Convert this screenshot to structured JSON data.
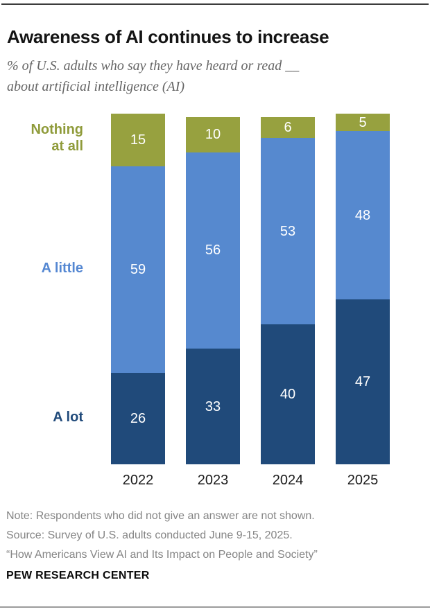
{
  "header": {
    "title": "Awareness of AI continues to increase",
    "subtitle_line1": "% of U.S. adults who say they have heard or read __",
    "subtitle_line2": "about artificial intelligence (AI)"
  },
  "chart_data": {
    "type": "bar",
    "stacked": true,
    "orientation": "vertical",
    "categories": [
      "2022",
      "2023",
      "2024",
      "2025"
    ],
    "series": [
      {
        "name": "A lot",
        "color": "#204a7a",
        "values": [
          26,
          33,
          40,
          47
        ]
      },
      {
        "name": "A little",
        "color": "#5689cf",
        "values": [
          59,
          56,
          53,
          48
        ]
      },
      {
        "name": "Nothing at all",
        "color": "#97a13f",
        "values": [
          15,
          10,
          6,
          5
        ]
      }
    ],
    "value_label_color": "#ffffff",
    "ylim": [
      0,
      100
    ],
    "grid": false,
    "legend_position": "left-of-first-bar",
    "title": "Awareness of AI continues to increase",
    "xlabel": "",
    "ylabel": ""
  },
  "category_labels": {
    "nothing_line1": "Nothing",
    "nothing_line2": "at all",
    "little": "A little",
    "lot": "A lot"
  },
  "footer": {
    "note": "Note: Respondents who did not give an answer are not shown.",
    "source": "Source: Survey of U.S. adults conducted June 9-15, 2025.",
    "report": "“How Americans View AI and Its Impact on People and Society”",
    "org": "PEW RESEARCH CENTER"
  }
}
